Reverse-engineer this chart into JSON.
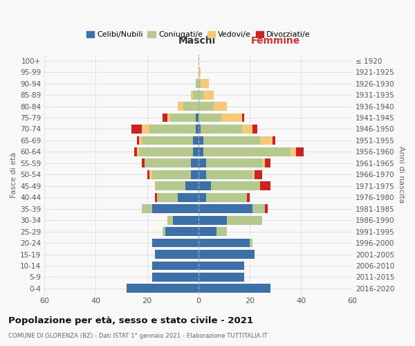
{
  "age_groups": [
    "0-4",
    "5-9",
    "10-14",
    "15-19",
    "20-24",
    "25-29",
    "30-34",
    "35-39",
    "40-44",
    "45-49",
    "50-54",
    "55-59",
    "60-64",
    "65-69",
    "70-74",
    "75-79",
    "80-84",
    "85-89",
    "90-94",
    "95-99",
    "100+"
  ],
  "birth_years": [
    "2016-2020",
    "2011-2015",
    "2006-2010",
    "2001-2005",
    "1996-2000",
    "1991-1995",
    "1986-1990",
    "1981-1985",
    "1976-1980",
    "1971-1975",
    "1966-1970",
    "1961-1965",
    "1956-1960",
    "1951-1955",
    "1946-1950",
    "1941-1945",
    "1936-1940",
    "1931-1935",
    "1926-1930",
    "1921-1925",
    "≤ 1920"
  ],
  "maschi": {
    "celibi": [
      28,
      18,
      18,
      17,
      18,
      13,
      10,
      18,
      8,
      5,
      3,
      3,
      2,
      2,
      1,
      1,
      0,
      0,
      0,
      0,
      0
    ],
    "coniugati": [
      0,
      0,
      0,
      0,
      0,
      1,
      2,
      4,
      8,
      12,
      15,
      18,
      21,
      20,
      18,
      10,
      6,
      2,
      1,
      0,
      0
    ],
    "vedovi": [
      0,
      0,
      0,
      0,
      0,
      0,
      0,
      0,
      0,
      0,
      1,
      0,
      1,
      1,
      3,
      1,
      2,
      1,
      0,
      0,
      0
    ],
    "divorziati": [
      0,
      0,
      0,
      0,
      0,
      0,
      0,
      0,
      1,
      0,
      1,
      1,
      1,
      1,
      4,
      2,
      0,
      0,
      0,
      0,
      0
    ]
  },
  "femmine": {
    "nubili": [
      28,
      18,
      18,
      22,
      20,
      7,
      11,
      21,
      3,
      5,
      3,
      3,
      2,
      2,
      1,
      0,
      0,
      0,
      0,
      0,
      0
    ],
    "coniugate": [
      0,
      0,
      0,
      0,
      1,
      4,
      14,
      5,
      16,
      19,
      18,
      22,
      34,
      22,
      16,
      9,
      6,
      2,
      1,
      0,
      0
    ],
    "vedove": [
      0,
      0,
      0,
      0,
      0,
      0,
      0,
      0,
      0,
      0,
      1,
      1,
      2,
      5,
      4,
      8,
      5,
      4,
      3,
      1,
      0
    ],
    "divorziate": [
      0,
      0,
      0,
      0,
      0,
      0,
      0,
      1,
      1,
      4,
      3,
      2,
      3,
      1,
      2,
      1,
      0,
      0,
      0,
      0,
      0
    ]
  },
  "colors": {
    "celibi": "#3d6fa8",
    "coniugati": "#b5c98e",
    "vedovi": "#f5c97a",
    "divorziati": "#cc2222"
  },
  "xlim": 60,
  "title": "Popolazione per età, sesso e stato civile - 2021",
  "subtitle": "COMUNE DI GLORENZA (BZ) - Dati ISTAT 1° gennaio 2021 - Elaborazione TUTTITALIA.IT",
  "xlabel_left": "Maschi",
  "xlabel_right": "Femmine",
  "ylabel_left": "Fasce di età",
  "ylabel_right": "Anni di nascita",
  "legend_labels": [
    "Celibi/Nubili",
    "Coniugati/e",
    "Vedovi/e",
    "Divorziati/e"
  ],
  "bg_color": "#f8f8f8",
  "grid_color": "#cccccc"
}
